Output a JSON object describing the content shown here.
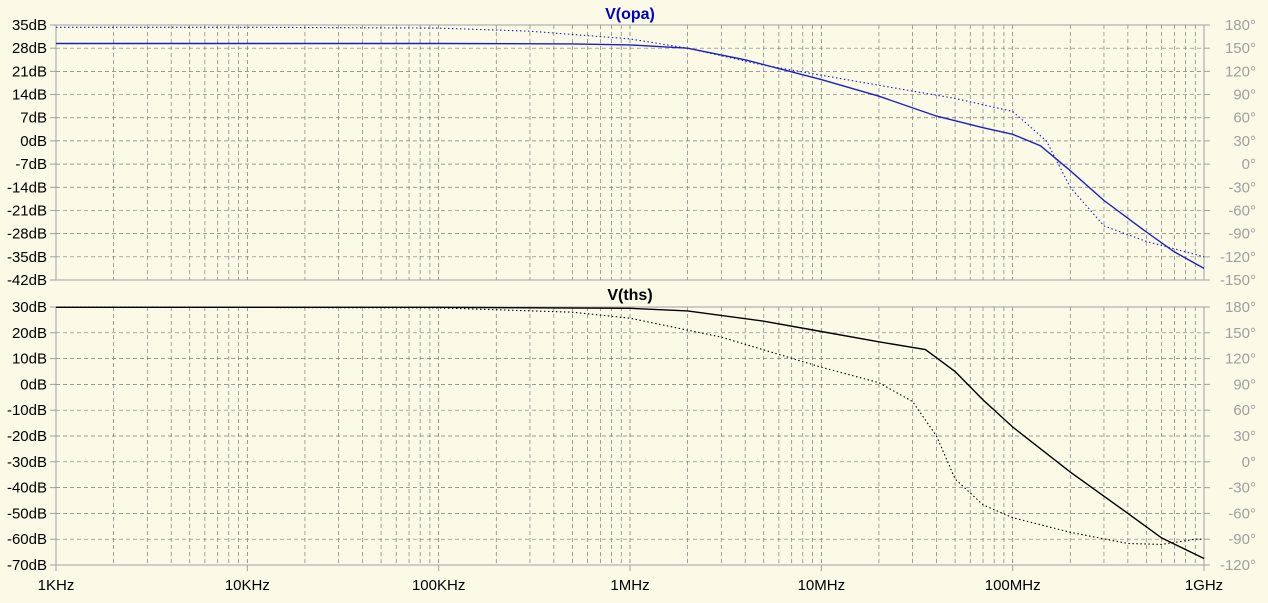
{
  "chart_data": [
    {
      "type": "line",
      "title": "V(opa)",
      "title_color": "#0000c8",
      "x_scale": "log",
      "x_range_hz": [
        1000,
        1000000000
      ],
      "x_ticks": [
        {
          "hz": 1000,
          "label": "1KHz"
        },
        {
          "hz": 10000,
          "label": "10KHz"
        },
        {
          "hz": 100000,
          "label": "100KHz"
        },
        {
          "hz": 1000000,
          "label": "1MHz"
        },
        {
          "hz": 10000000,
          "label": "10MHz"
        },
        {
          "hz": 100000000,
          "label": "100MHz"
        },
        {
          "hz": 1000000000,
          "label": "1GHz"
        }
      ],
      "left_axis": {
        "unit": "dB",
        "range": [
          -42,
          35
        ],
        "ticks": [
          35,
          28,
          21,
          14,
          7,
          0,
          -7,
          -14,
          -21,
          -28,
          -35,
          -42
        ],
        "labels": [
          "35dB",
          "28dB",
          "21dB",
          "14dB",
          "7dB",
          "0dB",
          "-7dB",
          "-14dB",
          "-21dB",
          "-28dB",
          "-35dB",
          "-42dB"
        ]
      },
      "right_axis": {
        "unit": "deg",
        "range": [
          -150,
          180
        ],
        "ticks": [
          180,
          150,
          120,
          90,
          60,
          30,
          0,
          -30,
          -60,
          -90,
          -120,
          -150
        ],
        "labels": [
          "180°",
          "150°",
          "120°",
          "90°",
          "60°",
          "30°",
          "0°",
          "-30°",
          "-60°",
          "-90°",
          "-120°",
          "-150°"
        ]
      },
      "grid": true,
      "series": [
        {
          "role": "magnitude",
          "axis": "left",
          "style": "solid",
          "color": "#1e1ec8",
          "points": [
            [
              1000,
              29.4
            ],
            [
              10000,
              29.4
            ],
            [
              100000,
              29.4
            ],
            [
              500000,
              29.3
            ],
            [
              1000000,
              29.0
            ],
            [
              2000000,
              28.0
            ],
            [
              4000000,
              24.5
            ],
            [
              10000000,
              18.5
            ],
            [
              20000000,
              13.5
            ],
            [
              40000000,
              7.5
            ],
            [
              70000000,
              4.0
            ],
            [
              100000000,
              2.0
            ],
            [
              140000000,
              -1.5
            ],
            [
              200000000,
              -9.0
            ],
            [
              300000000,
              -18.0
            ],
            [
              500000000,
              -27.5
            ],
            [
              700000000,
              -33.5
            ],
            [
              1000000000,
              -38.5
            ]
          ]
        },
        {
          "role": "phase",
          "axis": "right",
          "style": "dotted",
          "color": "#1e1ec8",
          "points": [
            [
              1000,
              177
            ],
            [
              10000,
              177
            ],
            [
              100000,
              176
            ],
            [
              300000,
              172
            ],
            [
              1000000,
              162
            ],
            [
              2000000,
              150
            ],
            [
              5000000,
              128
            ],
            [
              10000000,
              115
            ],
            [
              20000000,
              102
            ],
            [
              50000000,
              85
            ],
            [
              100000000,
              68
            ],
            [
              150000000,
              30
            ],
            [
              200000000,
              -30
            ],
            [
              300000000,
              -80
            ],
            [
              500000000,
              -100
            ],
            [
              1000000000,
              -120
            ]
          ]
        }
      ]
    },
    {
      "type": "line",
      "title": "V(ths)",
      "title_color": "#000000",
      "x_scale": "log",
      "x_range_hz": [
        1000,
        1000000000
      ],
      "x_ticks": [
        {
          "hz": 1000,
          "label": "1KHz"
        },
        {
          "hz": 10000,
          "label": "10KHz"
        },
        {
          "hz": 100000,
          "label": "100KHz"
        },
        {
          "hz": 1000000,
          "label": "1MHz"
        },
        {
          "hz": 10000000,
          "label": "10MHz"
        },
        {
          "hz": 100000000,
          "label": "100MHz"
        },
        {
          "hz": 1000000000,
          "label": "1GHz"
        }
      ],
      "left_axis": {
        "unit": "dB",
        "range": [
          -70,
          30
        ],
        "ticks": [
          30,
          20,
          10,
          0,
          -10,
          -20,
          -30,
          -40,
          -50,
          -60,
          -70
        ],
        "labels": [
          "30dB",
          "20dB",
          "10dB",
          "0dB",
          "-10dB",
          "-20dB",
          "-30dB",
          "-40dB",
          "-50dB",
          "-60dB",
          "-70dB"
        ]
      },
      "right_axis": {
        "unit": "deg",
        "range": [
          -120,
          180
        ],
        "ticks": [
          180,
          150,
          120,
          90,
          60,
          30,
          0,
          -30,
          -60,
          -90,
          -120
        ],
        "labels": [
          "180°",
          "150°",
          "120°",
          "90°",
          "60°",
          "30°",
          "0°",
          "-30°",
          "-60°",
          "-90°",
          "-120°"
        ]
      },
      "grid": true,
      "series": [
        {
          "role": "magnitude",
          "axis": "left",
          "style": "solid",
          "color": "#000000",
          "points": [
            [
              1000,
              29.9
            ],
            [
              100000,
              29.9
            ],
            [
              1000000,
              29.5
            ],
            [
              2000000,
              28.5
            ],
            [
              5000000,
              24.5
            ],
            [
              10000000,
              20.5
            ],
            [
              20000000,
              16.5
            ],
            [
              35000000,
              13.5
            ],
            [
              50000000,
              5.0
            ],
            [
              70000000,
              -6.0
            ],
            [
              100000000,
              -16.5
            ],
            [
              200000000,
              -34.0
            ],
            [
              400000000,
              -50.0
            ],
            [
              600000000,
              -59.5
            ],
            [
              1000000000,
              -67.5
            ]
          ]
        },
        {
          "role": "phase",
          "axis": "right",
          "style": "dotted",
          "color": "#000000",
          "points": [
            [
              1000,
              180
            ],
            [
              100000,
              179
            ],
            [
              500000,
              174
            ],
            [
              1000000,
              167
            ],
            [
              3000000,
              145
            ],
            [
              10000000,
              110
            ],
            [
              20000000,
              92
            ],
            [
              30000000,
              70
            ],
            [
              40000000,
              30
            ],
            [
              50000000,
              -20
            ],
            [
              70000000,
              -50
            ],
            [
              100000000,
              -65
            ],
            [
              200000000,
              -82
            ],
            [
              400000000,
              -95
            ],
            [
              600000000,
              -96
            ],
            [
              900000000,
              -90
            ],
            [
              1000000000,
              -90
            ]
          ]
        }
      ]
    }
  ]
}
